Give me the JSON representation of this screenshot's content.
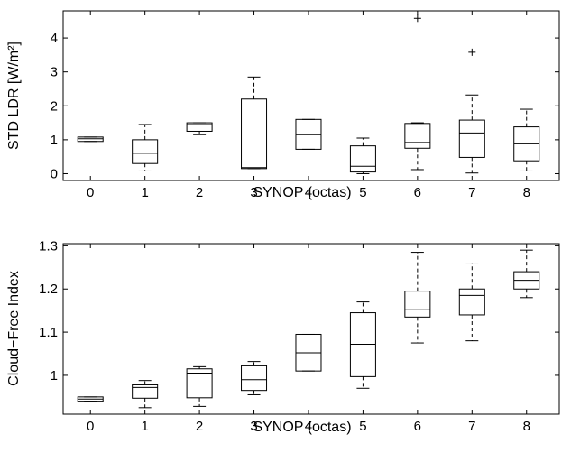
{
  "chart_data": [
    {
      "type": "box",
      "ylabel": "STD LDR [W/m²]",
      "xlabel": "SYNOP (octas)",
      "ylim": [
        -0.2,
        4.8
      ],
      "yticks": [
        0,
        1,
        2,
        3,
        4
      ],
      "categories": [
        "0",
        "1",
        "2",
        "3",
        "4",
        "5",
        "6",
        "7",
        "8"
      ],
      "boxes": [
        {
          "x": 0,
          "min": 0.95,
          "q1": 0.95,
          "median": 1.03,
          "q3": 1.08,
          "max": 1.08,
          "outliers": []
        },
        {
          "x": 1,
          "min": 0.08,
          "q1": 0.3,
          "median": 0.6,
          "q3": 1.0,
          "max": 1.45,
          "outliers": []
        },
        {
          "x": 2,
          "min": 1.15,
          "q1": 1.25,
          "median": 1.45,
          "q3": 1.5,
          "max": 1.5,
          "outliers": []
        },
        {
          "x": 3,
          "min": 0.15,
          "q1": 0.15,
          "median": 0.18,
          "q3": 2.2,
          "max": 2.85,
          "outliers": []
        },
        {
          "x": 4,
          "min": 0.72,
          "q1": 0.72,
          "median": 1.15,
          "q3": 1.6,
          "max": 1.6,
          "outliers": []
        },
        {
          "x": 5,
          "min": 0.0,
          "q1": 0.05,
          "median": 0.22,
          "q3": 0.82,
          "max": 1.05,
          "outliers": []
        },
        {
          "x": 6,
          "min": 0.12,
          "q1": 0.75,
          "median": 0.92,
          "q3": 1.48,
          "max": 1.5,
          "outliers": [
            4.58
          ]
        },
        {
          "x": 7,
          "min": 0.02,
          "q1": 0.48,
          "median": 1.2,
          "q3": 1.58,
          "max": 2.32,
          "outliers": [
            3.58
          ]
        },
        {
          "x": 8,
          "min": 0.08,
          "q1": 0.38,
          "median": 0.88,
          "q3": 1.38,
          "max": 1.9,
          "outliers": []
        }
      ]
    },
    {
      "type": "box",
      "ylabel": "Cloud−Free Index",
      "xlabel": "SYNOP (octas)",
      "ylim": [
        0.91,
        1.305
      ],
      "yticks": [
        1,
        1.1,
        1.2,
        1.3
      ],
      "categories": [
        "0",
        "1",
        "2",
        "3",
        "4",
        "5",
        "6",
        "7",
        "8"
      ],
      "boxes": [
        {
          "x": 0,
          "min": 0.94,
          "q1": 0.94,
          "median": 0.945,
          "q3": 0.95,
          "max": 0.95,
          "outliers": []
        },
        {
          "x": 1,
          "min": 0.925,
          "q1": 0.947,
          "median": 0.972,
          "q3": 0.978,
          "max": 0.988,
          "outliers": []
        },
        {
          "x": 2,
          "min": 0.928,
          "q1": 0.948,
          "median": 1.005,
          "q3": 1.015,
          "max": 1.02,
          "outliers": []
        },
        {
          "x": 3,
          "min": 0.955,
          "q1": 0.965,
          "median": 0.99,
          "q3": 1.022,
          "max": 1.032,
          "outliers": []
        },
        {
          "x": 4,
          "min": 1.01,
          "q1": 1.01,
          "median": 1.052,
          "q3": 1.095,
          "max": 1.095,
          "outliers": []
        },
        {
          "x": 5,
          "min": 0.97,
          "q1": 0.997,
          "median": 1.072,
          "q3": 1.145,
          "max": 1.17,
          "outliers": []
        },
        {
          "x": 6,
          "min": 1.075,
          "q1": 1.135,
          "median": 1.152,
          "q3": 1.195,
          "max": 1.285,
          "outliers": []
        },
        {
          "x": 7,
          "min": 1.08,
          "q1": 1.14,
          "median": 1.185,
          "q3": 1.2,
          "max": 1.26,
          "outliers": []
        },
        {
          "x": 8,
          "min": 1.18,
          "q1": 1.2,
          "median": 1.22,
          "q3": 1.24,
          "max": 1.29,
          "outliers": []
        }
      ]
    }
  ]
}
